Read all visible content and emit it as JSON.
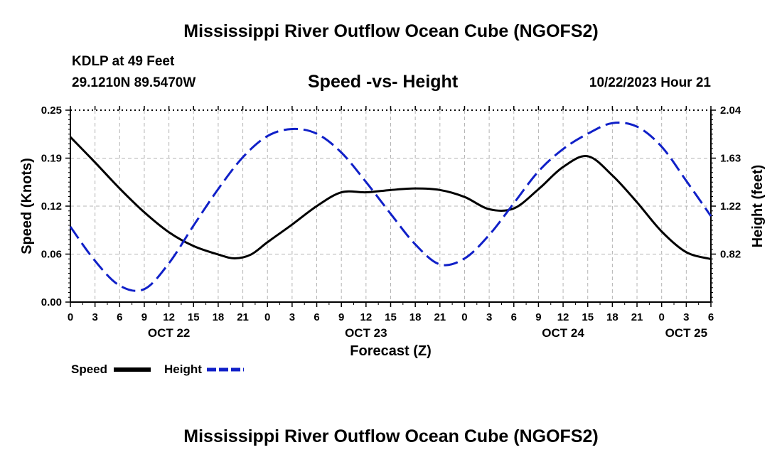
{
  "header": {
    "title": "Mississippi River Outflow Ocean Cube (NGOFS2)",
    "station": "KDLP at 49 Feet",
    "coords": "29.1210N  89.5470W",
    "subtitle": "Speed -vs- Height",
    "datetime": "10/22/2023 Hour 21"
  },
  "footer": {
    "title": "Mississippi River Outflow Ocean Cube (NGOFS2)"
  },
  "colors": {
    "speed": "#000000",
    "height": "#1020c8",
    "grid": "#b4b4b4"
  },
  "chart_data": {
    "type": "line",
    "title": "Speed -vs- Height",
    "xlabel": "Forecast (Z)",
    "ylabel": "Speed (Knots)",
    "y2label": "Height (feet)",
    "xlim": [
      0,
      78
    ],
    "ylim": [
      0,
      0.25
    ],
    "y2lim": [
      0.41,
      2.04
    ],
    "x_tick_labels": [
      "0",
      "3",
      "6",
      "9",
      "12",
      "15",
      "18",
      "21",
      "0",
      "3",
      "6",
      "9",
      "12",
      "15",
      "18",
      "21",
      "0",
      "3",
      "6",
      "9",
      "12",
      "15",
      "18",
      "21",
      "0",
      "3",
      "6"
    ],
    "date_labels": [
      {
        "label": "OCT 22",
        "x": 12
      },
      {
        "label": "OCT 23",
        "x": 36
      },
      {
        "label": "OCT 24",
        "x": 60
      },
      {
        "label": "OCT 25",
        "x": 75
      }
    ],
    "y_ticks": [
      "0.00",
      "0.06",
      "0.12",
      "0.19",
      "0.25"
    ],
    "y2_ticks": [
      "0.82",
      "1.22",
      "1.63",
      "2.04"
    ],
    "legend": [
      "Speed",
      "Height"
    ],
    "series": [
      {
        "name": "Speed",
        "axis": "left",
        "style": "solid",
        "x": [
          0,
          3,
          6,
          9,
          12,
          15,
          18,
          20,
          22,
          24,
          27,
          30,
          33,
          36,
          39,
          42,
          45,
          48,
          51,
          54,
          57,
          60,
          63,
          66,
          69,
          72,
          75,
          78
        ],
        "values": [
          0.215,
          0.182,
          0.148,
          0.117,
          0.091,
          0.073,
          0.062,
          0.057,
          0.062,
          0.078,
          0.101,
          0.125,
          0.143,
          0.143,
          0.146,
          0.148,
          0.146,
          0.137,
          0.121,
          0.122,
          0.147,
          0.176,
          0.19,
          0.165,
          0.13,
          0.092,
          0.065,
          0.056
        ]
      },
      {
        "name": "Height",
        "axis": "right",
        "style": "dashed",
        "x": [
          0,
          3,
          6,
          9,
          12,
          15,
          18,
          21,
          24,
          27,
          30,
          33,
          36,
          39,
          42,
          45,
          48,
          51,
          54,
          57,
          60,
          63,
          66,
          69,
          72,
          75,
          78
        ],
        "values": [
          1.05,
          0.76,
          0.55,
          0.52,
          0.74,
          1.06,
          1.37,
          1.64,
          1.82,
          1.88,
          1.84,
          1.68,
          1.43,
          1.16,
          0.9,
          0.73,
          0.78,
          0.98,
          1.25,
          1.52,
          1.71,
          1.84,
          1.93,
          1.9,
          1.73,
          1.44,
          1.14
        ]
      }
    ]
  }
}
